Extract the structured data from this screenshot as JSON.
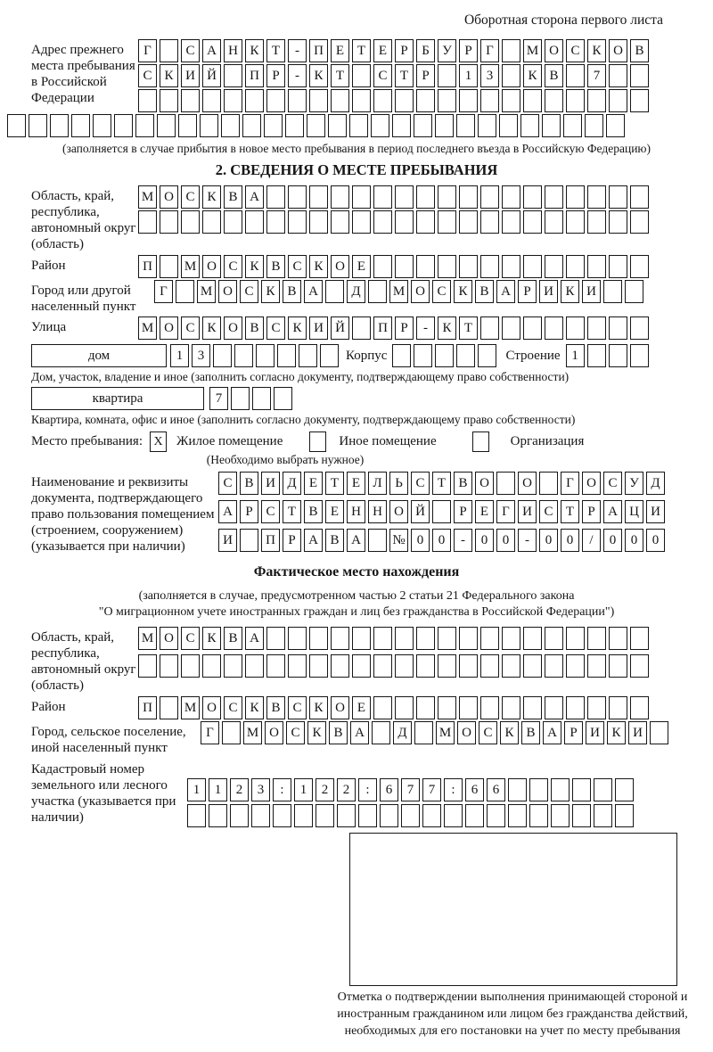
{
  "header": {
    "side_note": "Оборотная сторона первого листа"
  },
  "prev_address": {
    "label": "Адрес прежнего места пребывания в Российской Федерации",
    "rows": {
      "r1": "Г САНКТ-ПЕТЕРБУРГ МОСКОВ",
      "r2": "СКИЙ ПР-КТ СТР 13 КВ 7  ",
      "r3": "                        ",
      "r4": "                             "
    },
    "note": "(заполняется в случае прибытия в новое место пребывания в период последнего въезда в Российскую Федерацию)"
  },
  "section2": {
    "title": "2. СВЕДЕНИЯ О МЕСТЕ ПРЕБЫВАНИЯ",
    "region": {
      "label": "Область, край, республика, автономный округ (область)",
      "rows": {
        "r1": "МОСКВА                  ",
        "r2": "                        "
      }
    },
    "district": {
      "label": "Район",
      "row": "П МОСКВСКОЕ             "
    },
    "city": {
      "label": "Город или другой населенный пункт",
      "row": "Г МОСКВА Д МОСКВАРИКИ  "
    },
    "street": {
      "label": "Улица",
      "row": "МОСКОВСКИЙ ПР-КТ        "
    },
    "house": {
      "box_label": "дом",
      "cells": "13      ",
      "korpus_label": "Корпус",
      "korpus_cells": "     ",
      "stroenie_label": "Строение",
      "stroenie_cells": "1   ",
      "note": "Дом, участок, владение и иное (заполнить согласно документу, подтверждающему право собственности)"
    },
    "apartment": {
      "box_label": "квартира",
      "cells": "7   ",
      "note": "Квартира, комната, офис и иное (заполнить согласно документу, подтверждающему право собственности)"
    },
    "stay_type": {
      "label": "Место пребывания:",
      "options": [
        {
          "label": "Жилое помещение",
          "mark": "X"
        },
        {
          "label": "Иное помещение",
          "mark": ""
        },
        {
          "label": "Организация",
          "mark": ""
        }
      ],
      "note": "(Необходимо выбрать нужное)"
    },
    "document": {
      "label": "Наименование и реквизиты документа, подтверждающего право пользования помещением (строением, сооружением) (указывается при наличии)",
      "rows": {
        "r1": "СВИДЕТЕЛЬСТВО О ГОСУД",
        "r2": "АРСТВЕННОЙ РЕГИСТРАЦИ",
        "r3": "И ПРАВА №00-00-00/000"
      }
    }
  },
  "actual_location": {
    "title": "Фактическое место нахождения",
    "note_line1": "(заполняется в случае, предусмотренном частью 2 статьи 21 Федерального закона",
    "note_line2": "\"О миграционном учете иностранных граждан и лиц без гражданства в Российской Федерации\")",
    "region": {
      "label": "Область, край, республика, автономный округ (область)",
      "rows": {
        "r1": "МОСКВА                  ",
        "r2": "                        "
      }
    },
    "district": {
      "label": "Район",
      "row": "П МОСКВСКОЕ             "
    },
    "city": {
      "label": "Город, сельское поселение, иной населенный пункт",
      "row": "Г МОСКВА Д МОСКВАРИКИ "
    },
    "cadastral": {
      "label": "Кадастровый номер земельного или лесного участка (указывается при наличии)",
      "rows": {
        "r1": "1123:122:677:66      ",
        "r2": "                     "
      }
    }
  },
  "confirmation": {
    "caption": "Отметка о подтверждении выполнения принимающей стороной и иностранным гражданином или лицом без гражданства действий, необходимых для его постановки на учет по месту пребывания"
  }
}
